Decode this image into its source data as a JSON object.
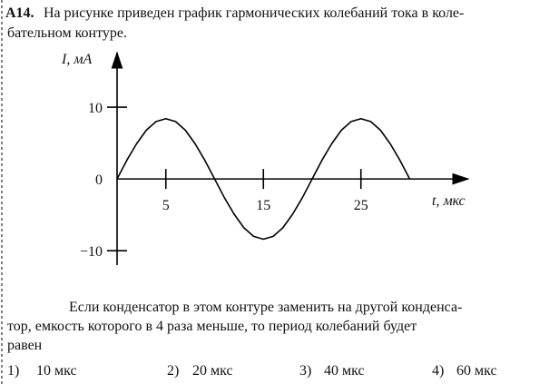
{
  "question": {
    "number": "А14.",
    "lines": [
      "На рисунке приведен график гармонических колебаний тока в коле-",
      "бательном контуре."
    ]
  },
  "chart": {
    "type": "line",
    "ylabel": "I, мА",
    "xlabel": "t, мкс",
    "x": [
      0,
      1,
      2,
      3,
      4,
      5,
      6,
      7,
      8,
      9,
      10,
      11,
      12,
      13,
      14,
      15,
      16,
      17,
      18,
      19,
      20,
      21,
      22,
      23,
      24,
      25,
      26,
      27,
      28,
      29,
      30
    ],
    "values": [
      0,
      2.6,
      4.9,
      6.8,
      8,
      8.4,
      8,
      6.8,
      4.9,
      2.6,
      0,
      -2.6,
      -4.9,
      -6.8,
      -8,
      -8.4,
      -8,
      -6.8,
      -4.9,
      -2.6,
      0,
      2.6,
      4.9,
      6.8,
      8,
      8.4,
      8,
      6.8,
      4.9,
      2.6,
      0
    ],
    "color": "#000000",
    "xlim": [
      0,
      36
    ],
    "ylim": [
      -12,
      17.6
    ],
    "xticks": [
      5,
      15,
      25
    ],
    "yticks": [
      10,
      0,
      {
        "value": -10,
        "label": "−10"
      }
    ]
  },
  "prompt": {
    "lines": [
      "Если конденсатор в этом контуре заменить на другой конденса-",
      "тор, емкость которого в 4 раза меньше, то период колебаний будет",
      "равен"
    ]
  },
  "options": [
    {
      "number": "1)",
      "text": "10 мкс"
    },
    {
      "number": "2)",
      "text": "20 мкс"
    },
    {
      "number": "3)",
      "text": "40 мкс"
    },
    {
      "number": "4)",
      "text": "60 мкс"
    }
  ]
}
